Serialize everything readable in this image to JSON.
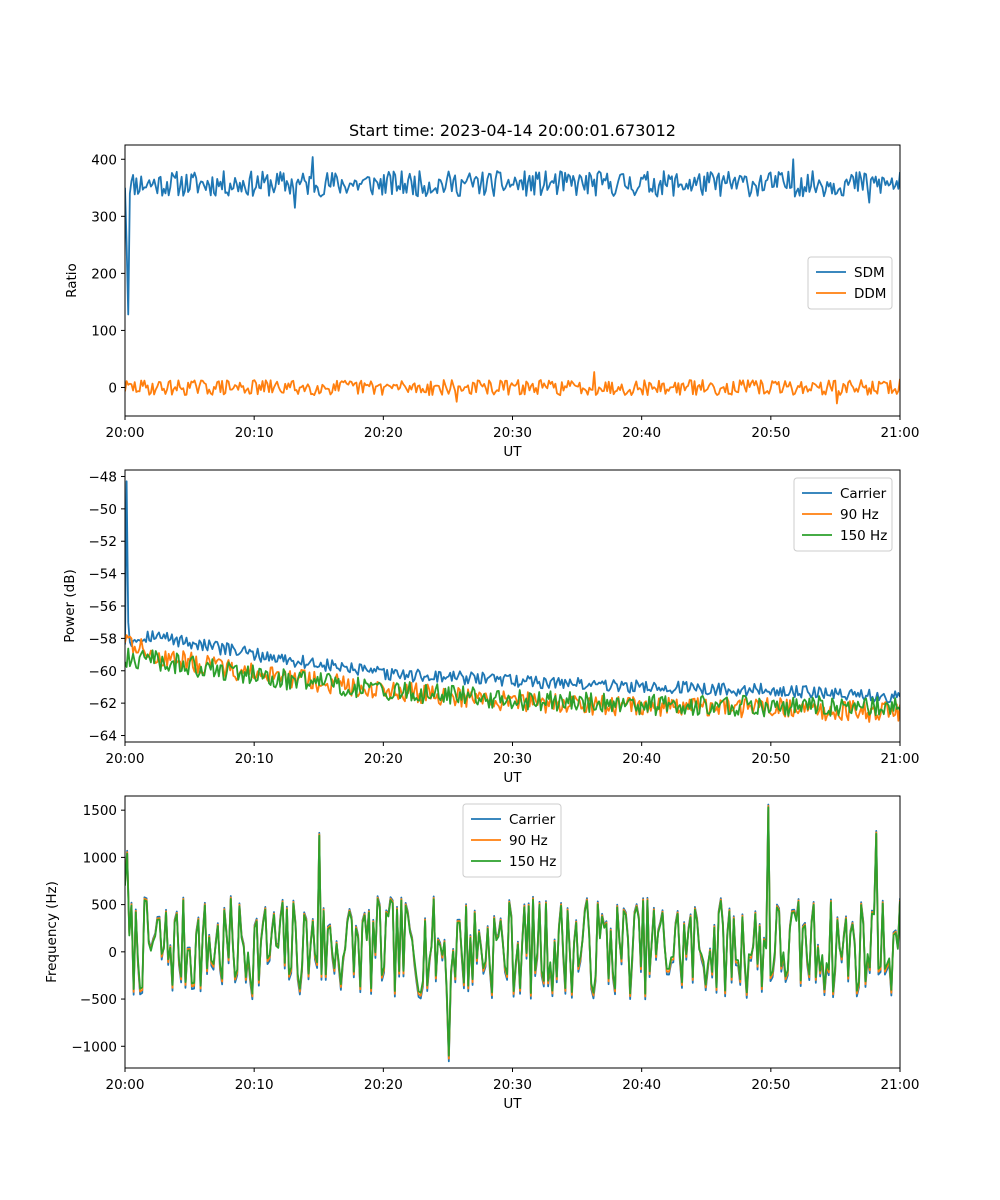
{
  "figure": {
    "title": "Start time: 2023-04-14 20:00:01.673012"
  },
  "chart_data": [
    {
      "type": "line",
      "xlabel": "UT",
      "ylabel": "Ratio",
      "xlim": [
        "20:00",
        "21:00"
      ],
      "x_ticks": [
        "20:00",
        "20:10",
        "20:20",
        "20:30",
        "20:40",
        "20:50",
        "21:00"
      ],
      "ylim": [
        -50,
        425
      ],
      "y_ticks": [
        0,
        100,
        200,
        300,
        400
      ],
      "y_tick_labels": [
        "0",
        "100",
        "200",
        "300",
        "400"
      ],
      "legend_position": "center-right",
      "n_points": 480,
      "series": [
        {
          "name": "SDM",
          "color": "#1f77b4",
          "description_values": {
            "start": 128,
            "peak_start": 355,
            "mean": 357,
            "noise": 16,
            "max": 404,
            "min": 315
          },
          "anchors": [
            [
              0,
              350
            ],
            [
              2,
              128
            ],
            [
              4,
              355
            ],
            [
              60,
              357
            ],
            [
              116,
              404
            ],
            [
              260,
              357
            ],
            [
              413,
              400
            ],
            [
              479,
              375
            ]
          ]
        },
        {
          "name": "DDM",
          "color": "#ff7f0e",
          "description_values": {
            "mean": 0,
            "noise": 9,
            "max": 27,
            "min": -28
          },
          "anchors": [
            [
              0,
              0
            ],
            [
              290,
              27
            ],
            [
              440,
              -28
            ],
            [
              479,
              15
            ]
          ]
        }
      ]
    },
    {
      "type": "line",
      "xlabel": "UT",
      "ylabel": "Power (dB)",
      "xlim": [
        "20:00",
        "21:00"
      ],
      "x_ticks": [
        "20:00",
        "20:10",
        "20:20",
        "20:30",
        "20:40",
        "20:50",
        "21:00"
      ],
      "ylim": [
        -64.4,
        -47.6
      ],
      "y_ticks": [
        -64,
        -62,
        -60,
        -58,
        -56,
        -54,
        -52,
        -50,
        -48
      ],
      "y_tick_labels": [
        "−64",
        "−62",
        "−60",
        "−58",
        "−56",
        "−54",
        "−52",
        "−50",
        "−48"
      ],
      "legend_position": "top-right",
      "n_points": 480,
      "series": [
        {
          "name": "Carrier",
          "color": "#1f77b4",
          "trend": [
            [
              0,
              -58.2
            ],
            [
              16,
              -57.8
            ],
            [
              80,
              -59.0
            ],
            [
              160,
              -60.2
            ],
            [
              240,
              -60.6
            ],
            [
              320,
              -61.0
            ],
            [
              400,
              -61.2
            ],
            [
              479,
              -61.6
            ]
          ],
          "spike": [
            [
              1,
              -48.3
            ],
            [
              2,
              -57.0
            ]
          ],
          "noise": 0.25
        },
        {
          "name": "90 Hz",
          "color": "#ff7f0e",
          "trend": [
            [
              0,
              -58.0
            ],
            [
              16,
              -59.0
            ],
            [
              80,
              -60.2
            ],
            [
              160,
              -61.2
            ],
            [
              240,
              -61.9
            ],
            [
              320,
              -62.2
            ],
            [
              400,
              -62.3
            ],
            [
              479,
              -62.6
            ]
          ],
          "noise": 0.4
        },
        {
          "name": "150 Hz",
          "color": "#2ca02c",
          "trend": [
            [
              0,
              -59.2
            ],
            [
              16,
              -59.3
            ],
            [
              80,
              -60.3
            ],
            [
              160,
              -61.2
            ],
            [
              240,
              -61.8
            ],
            [
              320,
              -62.1
            ],
            [
              400,
              -62.2
            ],
            [
              479,
              -62.2
            ]
          ],
          "noise": 0.4
        }
      ]
    },
    {
      "type": "line",
      "xlabel": "UT",
      "ylabel": "Frequency (Hz)",
      "xlim": [
        "20:00",
        "21:00"
      ],
      "x_ticks": [
        "20:00",
        "20:10",
        "20:20",
        "20:30",
        "20:40",
        "20:50",
        "21:00"
      ],
      "ylim": [
        -1230,
        1650
      ],
      "y_ticks": [
        -1000,
        -500,
        0,
        500,
        1000,
        1500
      ],
      "y_tick_labels": [
        "−1000",
        "−500",
        "0",
        "500",
        "1000",
        "1500"
      ],
      "legend_position": "top-center",
      "n_points": 360,
      "series": [
        {
          "name": "Carrier",
          "color": "#1f77b4",
          "offset": -60
        },
        {
          "name": "90 Hz",
          "color": "#ff7f0e",
          "offset": -30
        },
        {
          "name": "150 Hz",
          "color": "#2ca02c",
          "offset": 0
        }
      ],
      "features": {
        "mean": 60,
        "amplitude": 420,
        "max": 1530,
        "max_at": 0.83,
        "min": -1100,
        "min_at": 0.417,
        "other_peaks": [
          [
            0.002,
            1040
          ],
          [
            0.25,
            1230
          ],
          [
            0.97,
            1250
          ]
        ]
      }
    }
  ]
}
